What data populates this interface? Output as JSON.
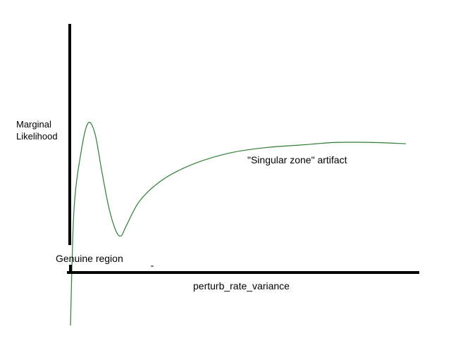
{
  "chart_data": {
    "type": "line",
    "ylabel": [
      "Marginal",
      "Likelihood"
    ],
    "xlabel": "perturb_rate_variance",
    "annotations": {
      "genuine": "Genuine region",
      "singular": "\"Singular zone\" artifact"
    },
    "grid": false,
    "legend": "none",
    "series": [
      {
        "color": "#2e7d32",
        "points": [
          [
            0.0,
            -0.6
          ],
          [
            0.01,
            0.3
          ],
          [
            0.03,
            0.75
          ],
          [
            0.05,
            0.98
          ],
          [
            0.07,
            0.9
          ],
          [
            0.09,
            0.6
          ],
          [
            0.11,
            0.32
          ],
          [
            0.13,
            0.14
          ],
          [
            0.145,
            0.1
          ],
          [
            0.16,
            0.18
          ],
          [
            0.2,
            0.38
          ],
          [
            0.27,
            0.55
          ],
          [
            0.36,
            0.67
          ],
          [
            0.46,
            0.75
          ],
          [
            0.56,
            0.79
          ],
          [
            0.66,
            0.81
          ],
          [
            0.76,
            0.83
          ],
          [
            0.86,
            0.83
          ],
          [
            0.96,
            0.82
          ]
        ]
      }
    ],
    "colors": {
      "axis": "#000000",
      "curve": "#2e7d32"
    }
  }
}
